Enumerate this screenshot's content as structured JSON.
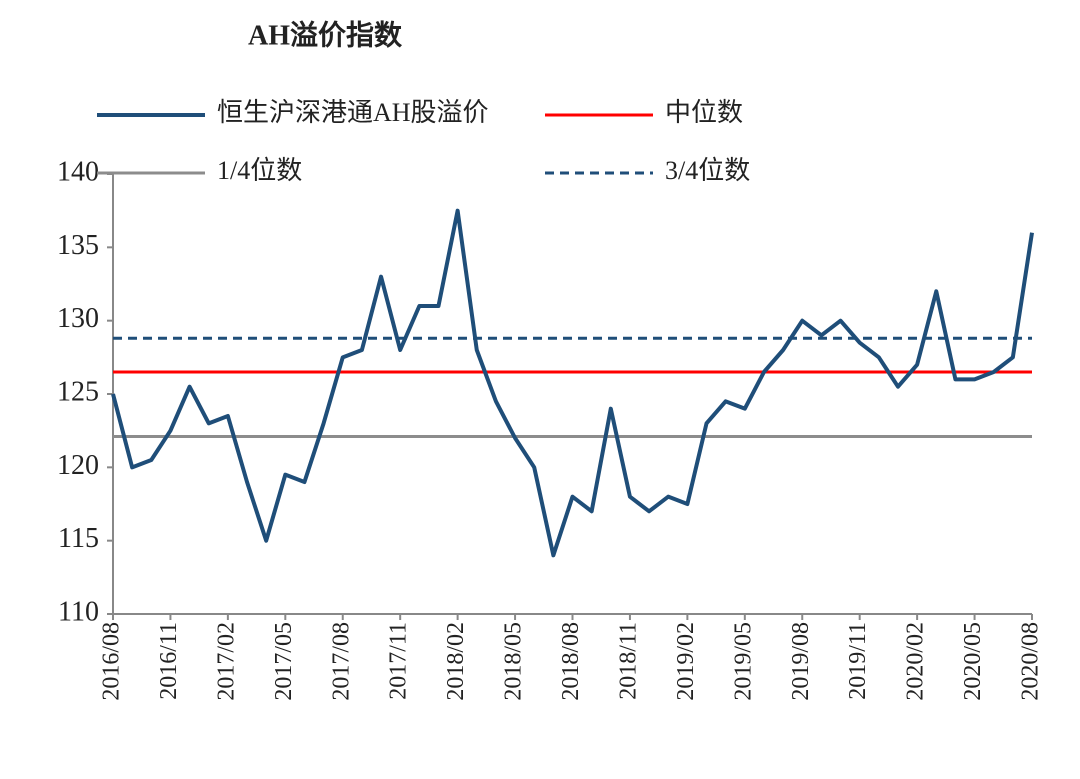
{
  "chart_data": {
    "type": "line",
    "title": "AH溢价指数",
    "x": [
      "2016/08",
      "2016/09",
      "2016/10",
      "2016/11",
      "2016/12",
      "2017/01",
      "2017/02",
      "2017/03",
      "2017/04",
      "2017/05",
      "2017/06",
      "2017/07",
      "2017/08",
      "2017/09",
      "2017/10",
      "2017/11",
      "2017/12",
      "2018/01",
      "2018/02",
      "2018/03",
      "2018/04",
      "2018/05",
      "2018/06",
      "2018/07",
      "2018/08",
      "2018/09",
      "2018/10",
      "2018/11",
      "2018/12",
      "2019/01",
      "2019/02",
      "2019/03",
      "2019/04",
      "2019/05",
      "2019/06",
      "2019/07",
      "2019/08",
      "2019/09",
      "2019/10",
      "2019/11",
      "2019/12",
      "2020/01",
      "2020/02",
      "2020/03",
      "2020/04",
      "2020/05",
      "2020/06",
      "2020/07",
      "2020/08"
    ],
    "xticks": [
      "2016/08",
      "2016/11",
      "2017/02",
      "2017/05",
      "2017/08",
      "2017/11",
      "2018/02",
      "2018/05",
      "2018/08",
      "2018/11",
      "2019/02",
      "2019/05",
      "2019/08",
      "2019/11",
      "2020/02",
      "2020/05",
      "2020/08"
    ],
    "series": [
      {
        "name": "恒生沪深港通AH股溢价",
        "color": "#1f4e79",
        "values": [
          125,
          120,
          120.5,
          122.5,
          125.5,
          123,
          123.5,
          119,
          115,
          119.5,
          119,
          123,
          127.5,
          128,
          133,
          128,
          131,
          131,
          137.5,
          128,
          124.5,
          122,
          120,
          114,
          118,
          117,
          124,
          118,
          117,
          118,
          117.5,
          123,
          124.5,
          124,
          126.5,
          128,
          130,
          129,
          130,
          128.5,
          127.5,
          125.5,
          127,
          132,
          126,
          126,
          126.5,
          127.5,
          136
        ]
      }
    ],
    "reference_lines": [
      {
        "name": "中位数",
        "value": 126.5,
        "color": "#ff0000",
        "style": "solid"
      },
      {
        "name": "1/4位数",
        "value": 122.1,
        "color": "#8c8c8c",
        "style": "solid"
      },
      {
        "name": "3/4位数",
        "value": 128.8,
        "color": "#1f4e79",
        "style": "dashed"
      }
    ],
    "ylim": [
      110,
      140
    ],
    "yticks": [
      110,
      115,
      120,
      125,
      130,
      135,
      140
    ]
  }
}
